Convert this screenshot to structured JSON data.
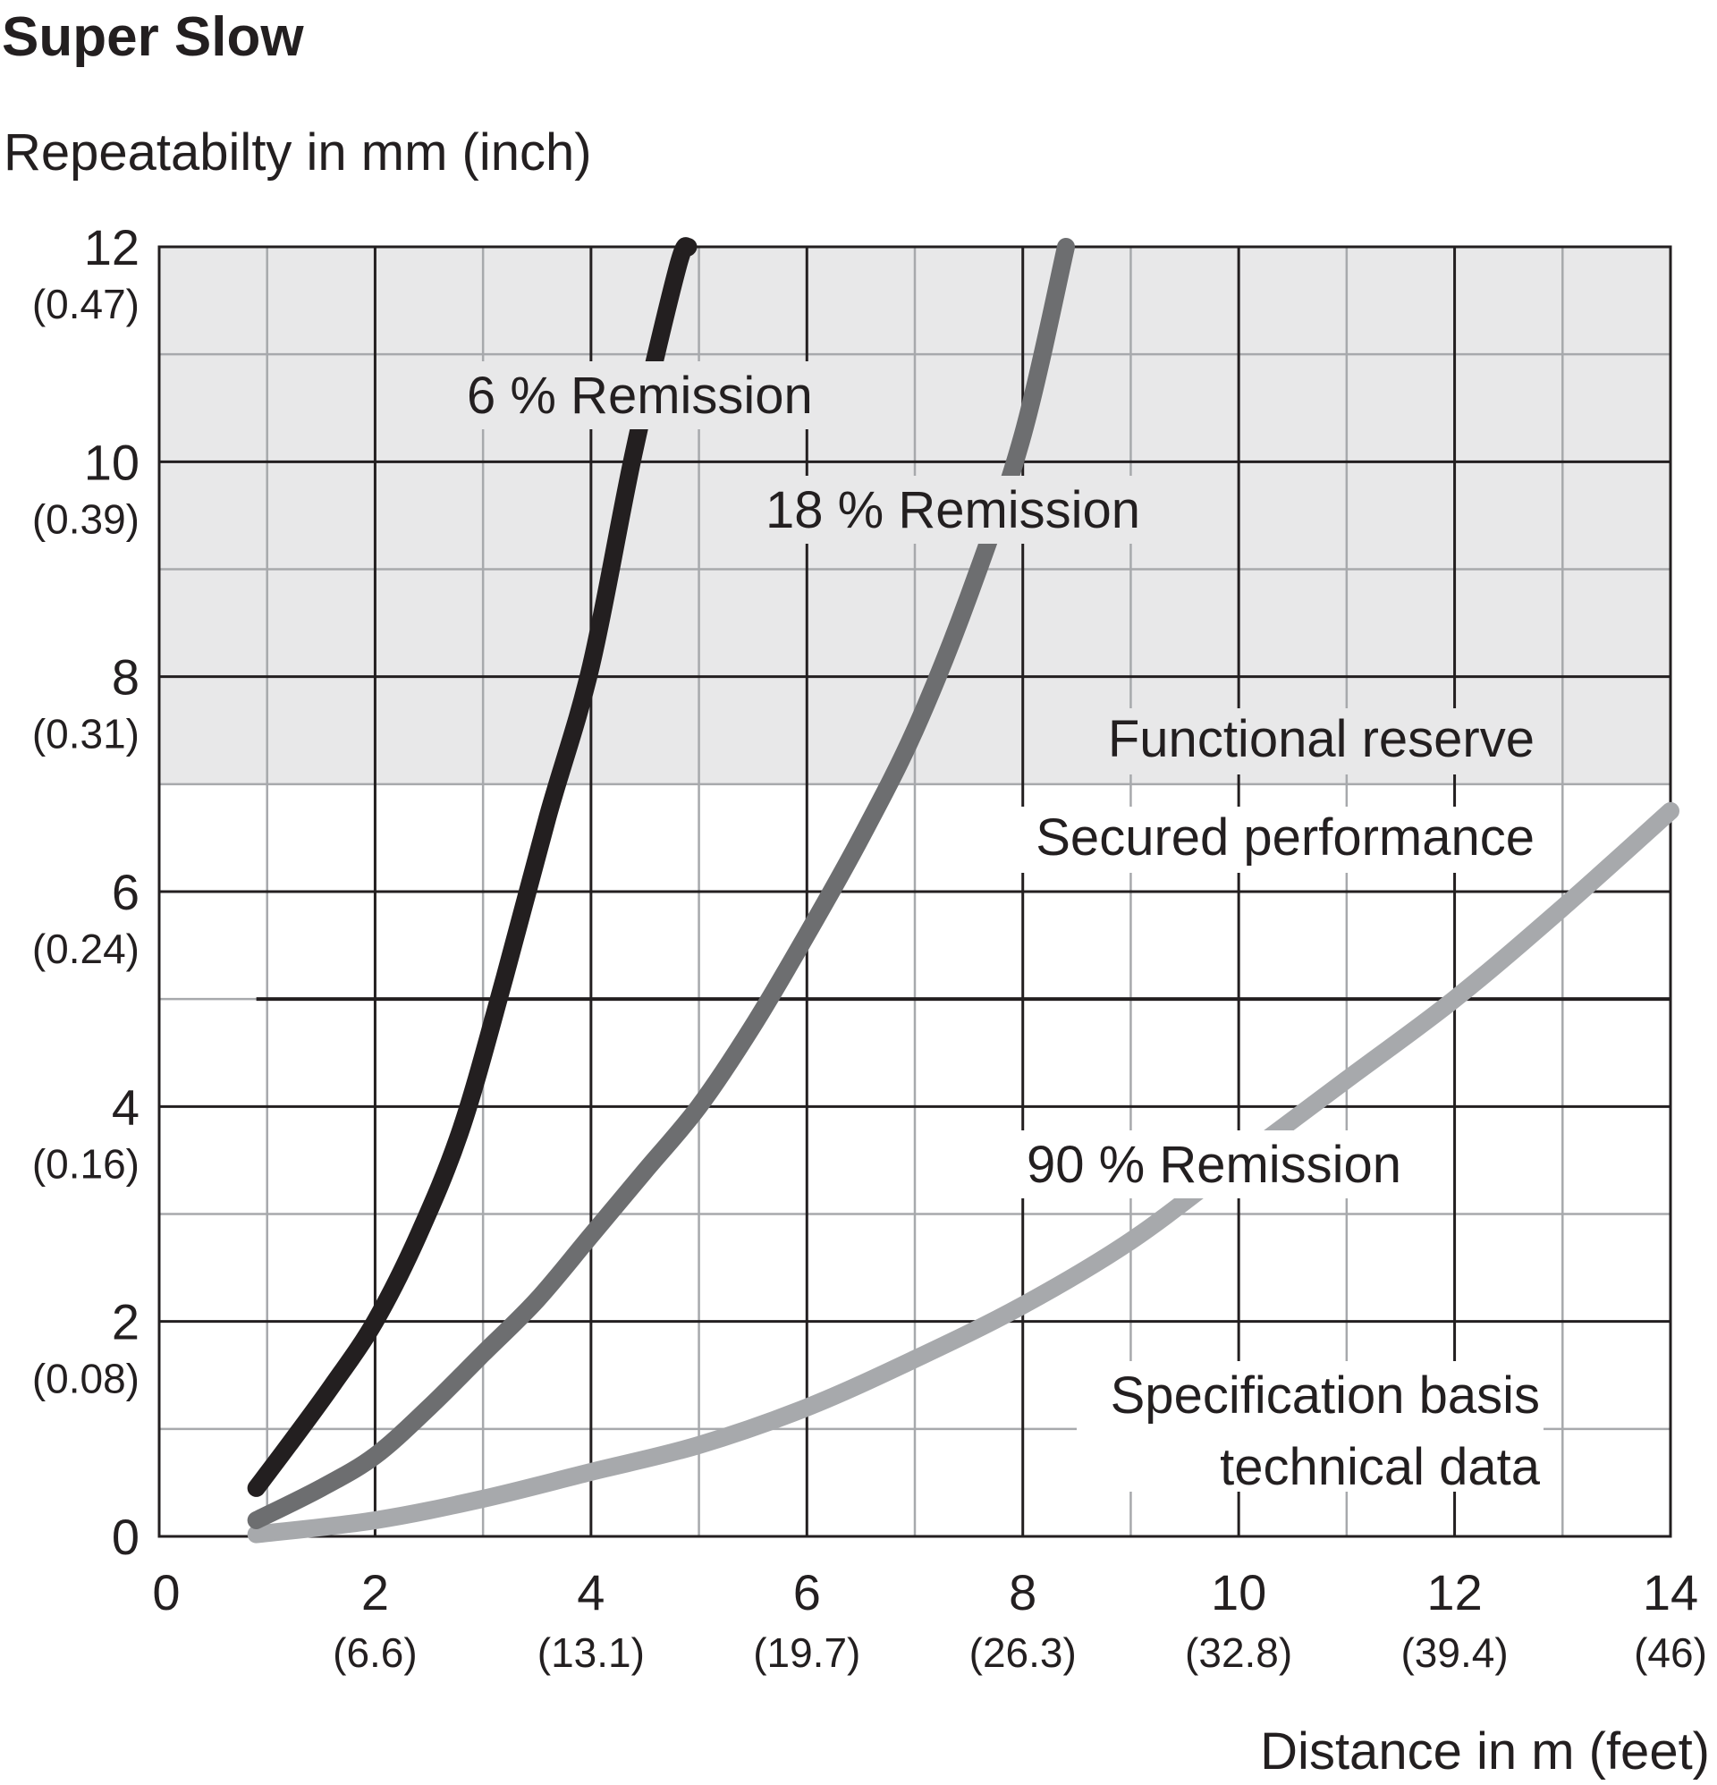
{
  "chart_data": {
    "type": "line",
    "title": "Super Slow",
    "ylabel": "Repeatabilty in mm (inch)",
    "xlabel": "Distance in m (feet)",
    "xlim": [
      0,
      14
    ],
    "ylim": [
      0,
      12
    ],
    "grid": true,
    "x_ticks": [
      {
        "value": 0,
        "label": "0",
        "sub": ""
      },
      {
        "value": 2,
        "label": "2",
        "sub": "(6.6)"
      },
      {
        "value": 4,
        "label": "4",
        "sub": "(13.1)"
      },
      {
        "value": 6,
        "label": "6",
        "sub": "(19.7)"
      },
      {
        "value": 8,
        "label": "8",
        "sub": "(26.3)"
      },
      {
        "value": 10,
        "label": "10",
        "sub": "(32.8)"
      },
      {
        "value": 12,
        "label": "12",
        "sub": "(39.4)"
      },
      {
        "value": 14,
        "label": "14",
        "sub": "(46)"
      }
    ],
    "y_ticks": [
      {
        "value": 0,
        "label": "0",
        "sub": ""
      },
      {
        "value": 2,
        "label": "2",
        "sub": "(0.08)"
      },
      {
        "value": 4,
        "label": "4",
        "sub": "(0.16)"
      },
      {
        "value": 6,
        "label": "6",
        "sub": "(0.24)"
      },
      {
        "value": 8,
        "label": "8",
        "sub": "(0.31)"
      },
      {
        "value": 10,
        "label": "10",
        "sub": "(0.39)"
      },
      {
        "value": 12,
        "label": "12",
        "sub": "(0.47)"
      }
    ],
    "regions": [
      {
        "name": "Functional reserve",
        "y_from": 7,
        "y_to": 12,
        "color": "#e8e8e9"
      },
      {
        "name": "Secured performance",
        "y_from": 5,
        "y_to": 7
      },
      {
        "name": "Specification basis technical data",
        "y_from": 0,
        "y_to": 5
      }
    ],
    "threshold_line": {
      "y": 5,
      "x_from": 0.9,
      "x_to": 14
    },
    "series": [
      {
        "name": "6 % Remission",
        "color": "#231f20",
        "x": [
          0.9,
          1.2,
          1.6,
          2.0,
          2.4,
          2.8,
          3.2,
          3.6,
          4.0,
          4.4,
          4.8,
          4.9
        ],
        "y": [
          0.45,
          0.85,
          1.4,
          2.0,
          2.8,
          3.8,
          5.2,
          6.7,
          8.1,
          10.1,
          11.8,
          12.0
        ]
      },
      {
        "name": "18 % Remission",
        "color": "#6d6e70",
        "x": [
          0.9,
          1.5,
          2.0,
          2.5,
          3.0,
          3.5,
          4.0,
          4.5,
          5.0,
          5.5,
          6.0,
          6.5,
          7.0,
          7.5,
          8.0,
          8.4
        ],
        "y": [
          0.15,
          0.45,
          0.75,
          1.2,
          1.7,
          2.2,
          2.8,
          3.4,
          4.0,
          4.75,
          5.6,
          6.5,
          7.5,
          8.75,
          10.25,
          12.0
        ]
      },
      {
        "name": "90 % Remission",
        "color": "#a7a9ac",
        "x": [
          0.9,
          2.0,
          3.0,
          4.0,
          5.0,
          6.0,
          7.0,
          8.0,
          9.0,
          10.0,
          11.0,
          12.0,
          13.0,
          14.0
        ],
        "y": [
          0.02,
          0.15,
          0.35,
          0.6,
          0.85,
          1.2,
          1.65,
          2.15,
          2.75,
          3.5,
          4.25,
          5.0,
          5.85,
          6.75
        ]
      }
    ],
    "annotations": {
      "remission_6": "6 % Remission",
      "remission_18": "18 % Remission",
      "remission_90": "90 % Remission",
      "functional_reserve": "Functional reserve",
      "secured_performance": "Secured performance",
      "spec_line1": "Specification basis",
      "spec_line2": "technical data"
    }
  }
}
